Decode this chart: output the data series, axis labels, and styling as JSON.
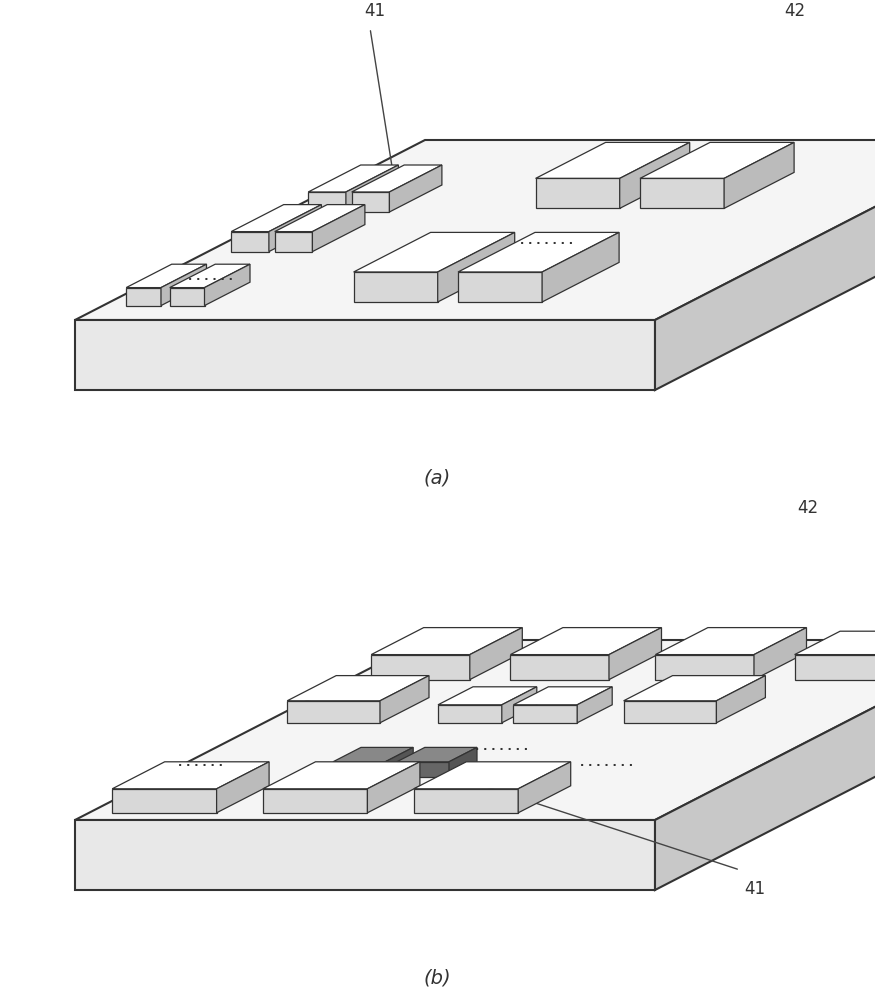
{
  "background_color": "#ffffff",
  "figure_size": [
    8.75,
    10.0
  ],
  "dpi": 100,
  "label_a": "(a)",
  "label_b": "(b)",
  "label_41_a": "41",
  "label_42_a": "42",
  "label_41_b": "41",
  "label_42_b": "42",
  "slab_top_color": "#f5f5f5",
  "slab_front_color": "#e8e8e8",
  "slab_right_color": "#c8c8c8",
  "elem_top_color": "#ffffff",
  "elem_front_color": "#d8d8d8",
  "elem_right_color": "#bbbbbb",
  "elem_dark_top": "#888888",
  "elem_dark_front": "#666666",
  "elem_dark_right": "#555555",
  "edge_color": "#333333",
  "text_color": "#333333",
  "line_color": "#444444"
}
